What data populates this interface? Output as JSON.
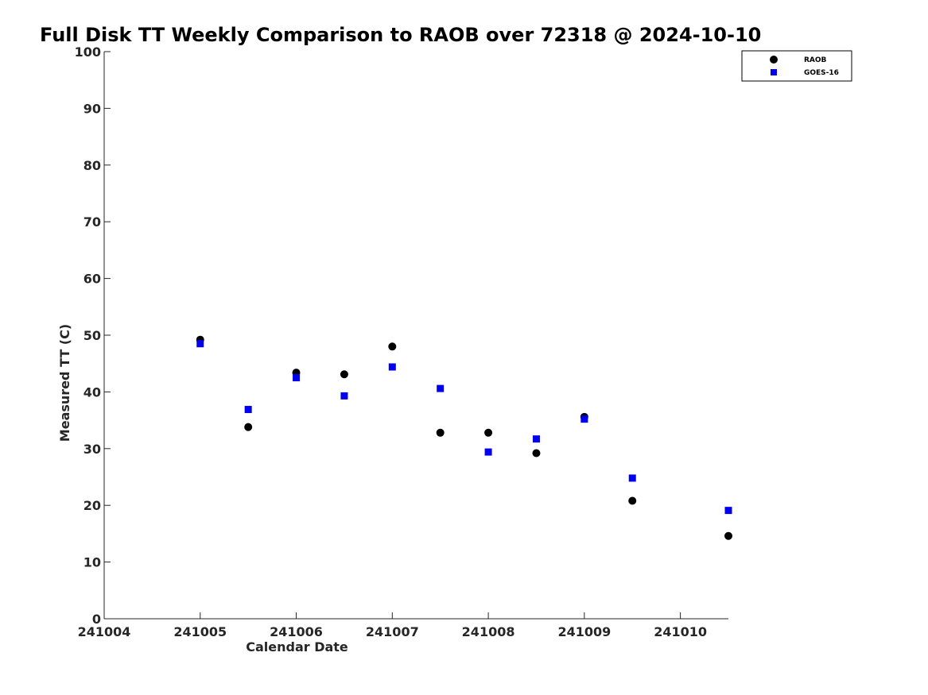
{
  "chart_data": {
    "type": "scatter",
    "title": "Full Disk TT Weekly Comparison to RAOB over 72318 @ 2024-10-10",
    "xlabel": "Calendar Date",
    "ylabel": "Measured TT (C)",
    "x_tick_labels": [
      "241004",
      "241005",
      "241006",
      "241007",
      "241008",
      "241009",
      "241010"
    ],
    "xlim": [
      "2024-10-04 00:00",
      "2024-10-10 12:00"
    ],
    "ylim": [
      0,
      100
    ],
    "y_ticks": [
      0,
      10,
      20,
      30,
      40,
      50,
      60,
      70,
      80,
      90,
      100
    ],
    "grid": false,
    "legend_position": "top-right",
    "x": [
      "2024-10-05 00:00",
      "2024-10-05 12:00",
      "2024-10-06 00:00",
      "2024-10-06 12:00",
      "2024-10-07 00:00",
      "2024-10-07 12:00",
      "2024-10-08 00:00",
      "2024-10-08 12:00",
      "2024-10-09 00:00",
      "2024-10-09 12:00",
      "2024-10-10 12:00"
    ],
    "series": [
      {
        "name": "RAOB",
        "marker": "circle",
        "color": "#000000",
        "values": [
          49.2,
          33.8,
          43.4,
          43.1,
          48.0,
          32.8,
          32.8,
          29.2,
          35.6,
          20.8,
          14.6
        ]
      },
      {
        "name": "GOES-16",
        "marker": "square",
        "color": "#0000ee",
        "values": [
          48.5,
          36.9,
          42.5,
          39.3,
          44.4,
          40.6,
          29.4,
          31.7,
          35.2,
          24.8,
          19.1
        ]
      }
    ]
  }
}
